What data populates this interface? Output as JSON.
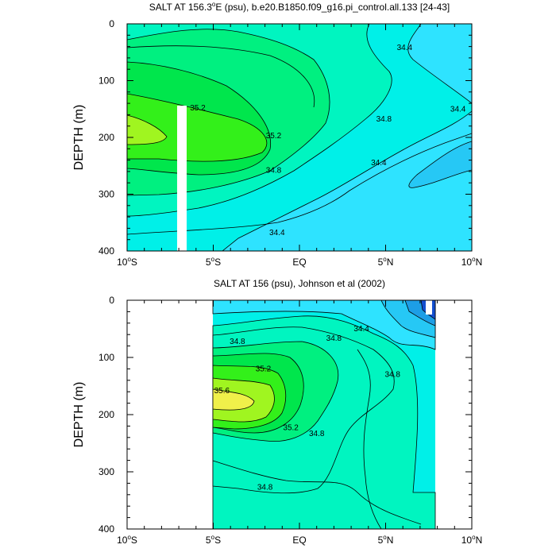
{
  "chart_data": [
    {
      "type": "contour",
      "title": "SALT AT 156.3°E (psu), b.e20.B1850.f09_g16.pi_control.all.133 [24-43]",
      "title_main": "SALT AT 156.3",
      "title_sup": "o",
      "title_rest": "E (psu), b.e20.B1850.f09_g16.pi_control.all.133 [24-43]",
      "xlabel": "",
      "ylabel": "DEPTH (m)",
      "xlim": [
        -10,
        10
      ],
      "ylim": [
        400,
        0
      ],
      "x_ticks": [
        {
          "num": "10",
          "sup": "o",
          "hem": "S"
        },
        {
          "num": "5",
          "sup": "o",
          "hem": "S"
        },
        {
          "num": "EQ",
          "sup": "",
          "hem": ""
        },
        {
          "num": "5",
          "sup": "o",
          "hem": "N"
        },
        {
          "num": "10",
          "sup": "o",
          "hem": "N"
        }
      ],
      "y_ticks": [
        "0",
        "100",
        "200",
        "300",
        "400"
      ],
      "data_extent_x": [
        -10,
        10
      ],
      "missing_band_x": [
        -7.1,
        -6.6
      ],
      "contour_interval": 0.2,
      "contour_labels": [
        {
          "text": "35.2",
          "x": -5.9,
          "y": 148
        },
        {
          "text": "35.2",
          "x": -1.5,
          "y": 197
        },
        {
          "text": "34.8",
          "x": -1.5,
          "y": 258
        },
        {
          "text": "34.4",
          "x": -1.3,
          "y": 368
        },
        {
          "text": "34.8",
          "x": 4.9,
          "y": 168
        },
        {
          "text": "34.4",
          "x": 4.6,
          "y": 245
        },
        {
          "text": "34.4",
          "x": 6.1,
          "y": 42
        },
        {
          "text": "34.4",
          "x": 9.2,
          "y": 150
        }
      ]
    },
    {
      "type": "contour",
      "title": "SALT AT 156 (psu), Johnson et al (2002)",
      "title_main": "SALT AT 156 (psu), Johnson et al (2002)",
      "title_sup": "",
      "title_rest": "",
      "xlabel": "",
      "ylabel": "DEPTH (m)",
      "xlim": [
        -10,
        10
      ],
      "ylim": [
        400,
        0
      ],
      "x_ticks": [
        {
          "num": "10",
          "sup": "o",
          "hem": "S"
        },
        {
          "num": "5",
          "sup": "o",
          "hem": "S"
        },
        {
          "num": "EQ",
          "sup": "",
          "hem": ""
        },
        {
          "num": "5",
          "sup": "o",
          "hem": "N"
        },
        {
          "num": "10",
          "sup": "o",
          "hem": "N"
        }
      ],
      "y_ticks": [
        "0",
        "100",
        "200",
        "300",
        "400"
      ],
      "data_extent_x": [
        -5,
        8
      ],
      "contour_interval": 0.2,
      "contour_labels": [
        {
          "text": "34.8",
          "x": -3.6,
          "y": 72
        },
        {
          "text": "35.2",
          "x": -2.1,
          "y": 120
        },
        {
          "text": "35.6",
          "x": -4.5,
          "y": 158
        },
        {
          "text": "35.2",
          "x": -0.5,
          "y": 223
        },
        {
          "text": "34.8",
          "x": 1.0,
          "y": 233
        },
        {
          "text": "34.8",
          "x": 2.0,
          "y": 67
        },
        {
          "text": "34.4",
          "x": 3.6,
          "y": 50
        },
        {
          "text": "34.8",
          "x": 5.4,
          "y": 130
        },
        {
          "text": "34.8",
          "x": -2.0,
          "y": 327
        }
      ]
    }
  ],
  "colors": {
    "s344": "#2ee3ff",
    "s346": "#00f0e8",
    "s348": "#00f5c0",
    "s350": "#00f080",
    "s352": "#00e64c",
    "s354": "#33f01a",
    "s356": "#a0f520",
    "s358": "#f0f04a",
    "s342": "#26c8f5",
    "s340": "#1d9ee6",
    "s338": "#1a78d6",
    "s336": "#144fd0"
  }
}
